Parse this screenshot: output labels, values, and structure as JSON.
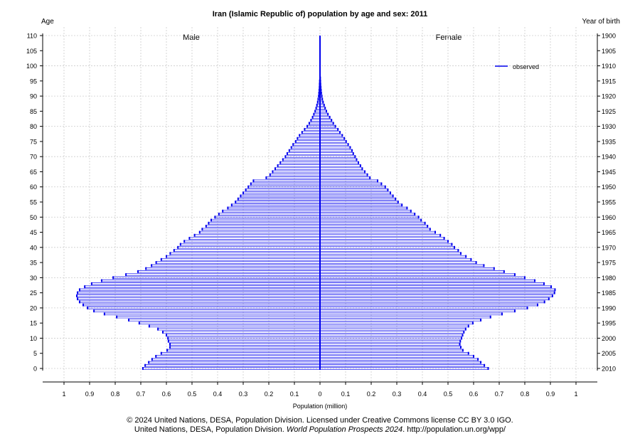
{
  "chart_data": {
    "type": "bar",
    "orientation": "horizontal",
    "title": "Iran (Islamic Republic of) population by age and sex: 2011",
    "xlabel": "Population (million)",
    "ylabel_left": "Age",
    "ylabel_right": "Year of birth",
    "xlim": [
      -1,
      1
    ],
    "ylim": [
      0,
      110
    ],
    "x_ticks": [
      1,
      0.9,
      0.8,
      0.7,
      0.6,
      0.5,
      0.4,
      0.3,
      0.2,
      0.1,
      0,
      0.1,
      0.2,
      0.3,
      0.4,
      0.5,
      0.6,
      0.7,
      0.8,
      0.9,
      1
    ],
    "y_ticks": [
      0,
      5,
      10,
      15,
      20,
      25,
      30,
      35,
      40,
      45,
      50,
      55,
      60,
      65,
      70,
      75,
      80,
      85,
      90,
      95,
      100,
      105,
      110
    ],
    "right_ticks": [
      2010,
      2005,
      2000,
      1995,
      1990,
      1985,
      1980,
      1975,
      1970,
      1965,
      1960,
      1955,
      1950,
      1945,
      1940,
      1935,
      1930,
      1925,
      1920,
      1915,
      1910,
      1905,
      1900
    ],
    "grid": true,
    "legend": {
      "placement": "top-right",
      "entries": [
        "observed"
      ]
    },
    "color": "#0000ee",
    "panel_labels": {
      "left": "Male",
      "right": "Female"
    },
    "ages": "0-110",
    "series": [
      {
        "name": "Male",
        "values": [
          0.692,
          0.683,
          0.669,
          0.656,
          0.641,
          0.62,
          0.597,
          0.586,
          0.586,
          0.592,
          0.594,
          0.6,
          0.614,
          0.633,
          0.667,
          0.706,
          0.747,
          0.794,
          0.842,
          0.883,
          0.908,
          0.925,
          0.939,
          0.947,
          0.95,
          0.947,
          0.939,
          0.919,
          0.892,
          0.853,
          0.808,
          0.758,
          0.711,
          0.68,
          0.658,
          0.64,
          0.62,
          0.6,
          0.585,
          0.57,
          0.555,
          0.545,
          0.53,
          0.51,
          0.49,
          0.47,
          0.46,
          0.445,
          0.435,
          0.425,
          0.41,
          0.395,
          0.38,
          0.36,
          0.345,
          0.33,
          0.32,
          0.31,
          0.3,
          0.29,
          0.28,
          0.27,
          0.26,
          0.21,
          0.195,
          0.185,
          0.175,
          0.165,
          0.155,
          0.145,
          0.135,
          0.128,
          0.12,
          0.112,
          0.105,
          0.095,
          0.088,
          0.08,
          0.07,
          0.06,
          0.05,
          0.042,
          0.035,
          0.029,
          0.024,
          0.019,
          0.015,
          0.012,
          0.009,
          0.007,
          0.005,
          0.004,
          0.003,
          0.002,
          0.0015,
          0.001,
          0,
          0,
          0,
          0,
          0,
          0,
          0,
          0,
          0,
          0,
          0,
          0,
          0,
          0,
          0
        ]
      },
      {
        "name": "Female",
        "values": [
          0.657,
          0.642,
          0.628,
          0.617,
          0.6,
          0.58,
          0.558,
          0.55,
          0.546,
          0.548,
          0.553,
          0.557,
          0.562,
          0.569,
          0.58,
          0.597,
          0.628,
          0.666,
          0.711,
          0.761,
          0.81,
          0.85,
          0.877,
          0.894,
          0.908,
          0.916,
          0.918,
          0.903,
          0.875,
          0.839,
          0.8,
          0.761,
          0.719,
          0.68,
          0.64,
          0.61,
          0.59,
          0.57,
          0.55,
          0.54,
          0.525,
          0.515,
          0.5,
          0.485,
          0.47,
          0.45,
          0.43,
          0.42,
          0.41,
          0.395,
          0.385,
          0.37,
          0.355,
          0.34,
          0.32,
          0.305,
          0.295,
          0.285,
          0.275,
          0.265,
          0.255,
          0.24,
          0.225,
          0.195,
          0.185,
          0.175,
          0.165,
          0.158,
          0.15,
          0.143,
          0.137,
          0.13,
          0.125,
          0.118,
          0.11,
          0.102,
          0.095,
          0.087,
          0.078,
          0.07,
          0.06,
          0.052,
          0.045,
          0.038,
          0.031,
          0.025,
          0.02,
          0.016,
          0.012,
          0.009,
          0.007,
          0.005,
          0.004,
          0.003,
          0.002,
          0.0015,
          0.001,
          0,
          0,
          0,
          0,
          0,
          0,
          0,
          0,
          0,
          0,
          0,
          0,
          0,
          0
        ]
      }
    ]
  },
  "footer": {
    "line1": "© 2024 United Nations, DESA, Population Division. Licensed under Creative Commons license CC BY 3.0 IGO.",
    "line2_a": "United Nations, DESA, Population Division. ",
    "line2_em": "World Population Prospects 2024",
    "line2_b": ". http://population.un.org/wpp/"
  }
}
